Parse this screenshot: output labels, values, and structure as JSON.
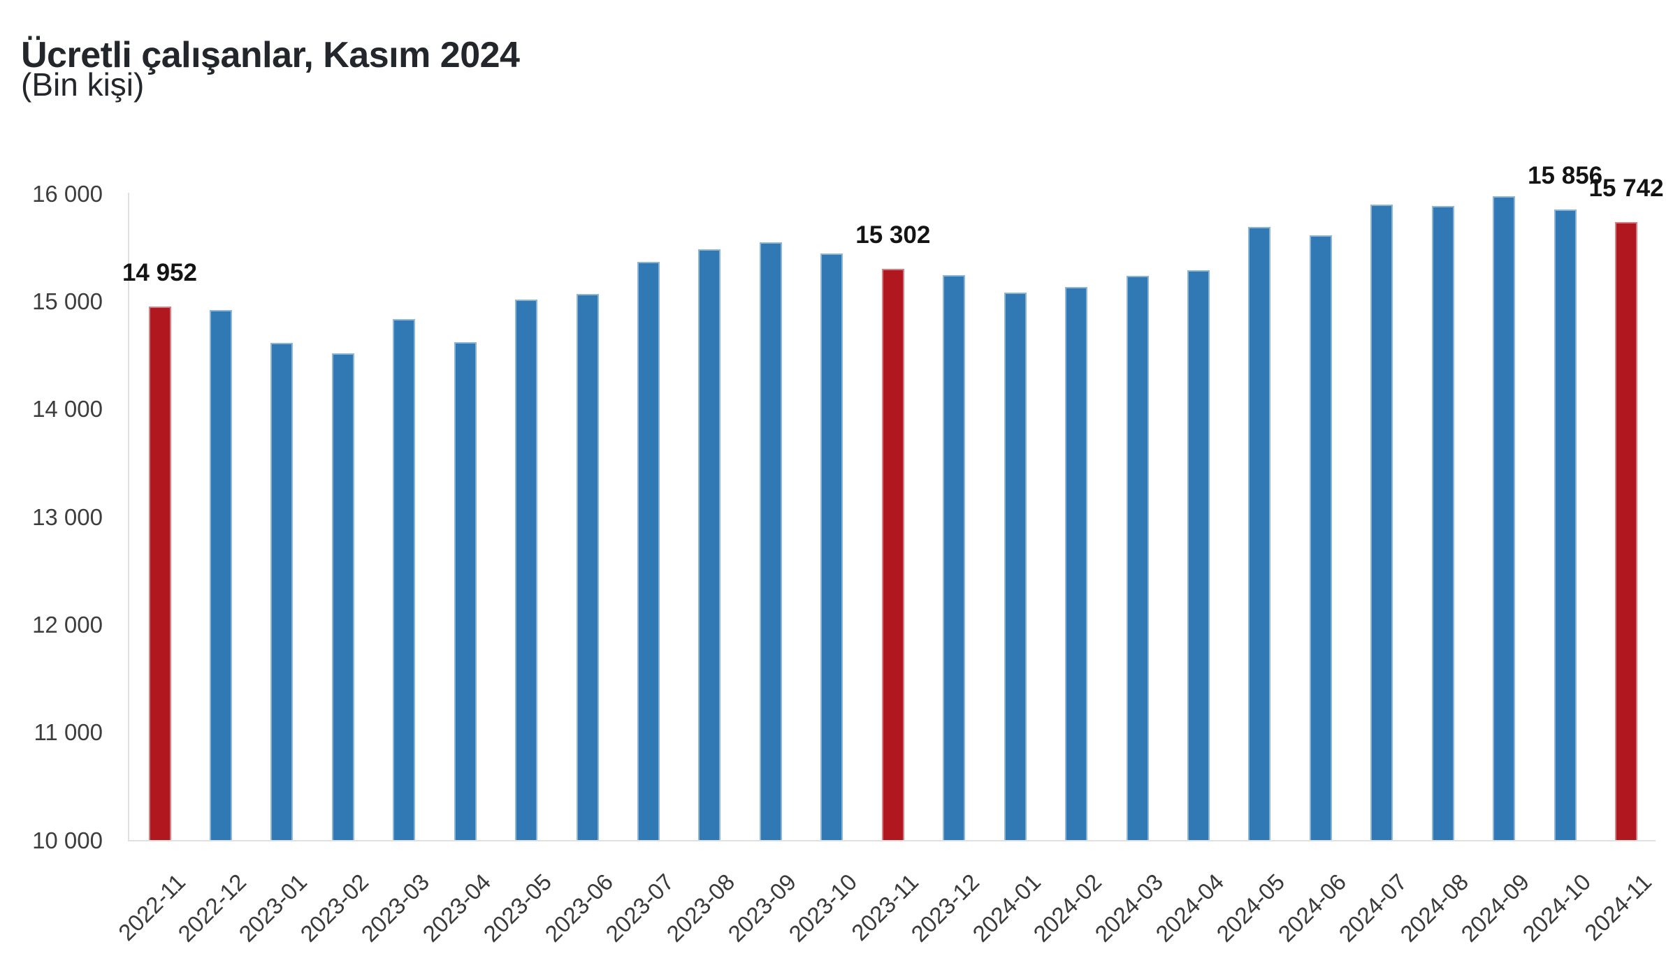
{
  "header": {
    "title": "Ücretli çalışanlar, Kasım 2024",
    "subtitle": "(Bin kişi)"
  },
  "colors": {
    "bar_blue": "#3179B5",
    "bar_red": "#B0171E",
    "axis_line": "#E0E0E0",
    "tick_text": "#3D3D3D",
    "point_label_text": "#141414",
    "title_text": "#23272B"
  },
  "chart_data": {
    "type": "bar",
    "title": "Ücretli çalışanlar, Kasım 2024",
    "subtitle": "(Bin kişi)",
    "ylabel": "Bin kişi",
    "xlabel": "",
    "categories": [
      "2022-11",
      "2022-12",
      "2023-01",
      "2023-02",
      "2023-03",
      "2023-04",
      "2023-05",
      "2023-06",
      "2023-07",
      "2023-08",
      "2023-09",
      "2023-10",
      "2023-11",
      "2023-12",
      "2024-01",
      "2024-02",
      "2024-03",
      "2024-04",
      "2024-05",
      "2024-06",
      "2024-07",
      "2024-08",
      "2024-09",
      "2024-10",
      "2024-11"
    ],
    "values": [
      14952,
      14919,
      14618,
      14519,
      14835,
      14623,
      15021,
      15070,
      15367,
      15484,
      15548,
      15444,
      15302,
      15245,
      15085,
      15134,
      15241,
      15290,
      15694,
      15616,
      15901,
      15891,
      15981,
      15856,
      15742
    ],
    "highlighted_categories": [
      "2022-11",
      "2023-11",
      "2024-11"
    ],
    "point_labels": [
      {
        "category": "2022-11",
        "text": "14 952"
      },
      {
        "category": "2023-11",
        "text": "15 302"
      },
      {
        "category": "2024-10",
        "text": "15 856"
      },
      {
        "category": "2024-11",
        "text": "15 742"
      }
    ],
    "ylim": [
      10000,
      16000
    ],
    "ytick_step": 1000,
    "ytick_labels": [
      "10 000",
      "11 000",
      "12 000",
      "13 000",
      "14 000",
      "15 000",
      "16 000"
    ],
    "grid": false,
    "legend": false,
    "bar_color": "#3179B5",
    "highlight_color": "#B0171E"
  }
}
